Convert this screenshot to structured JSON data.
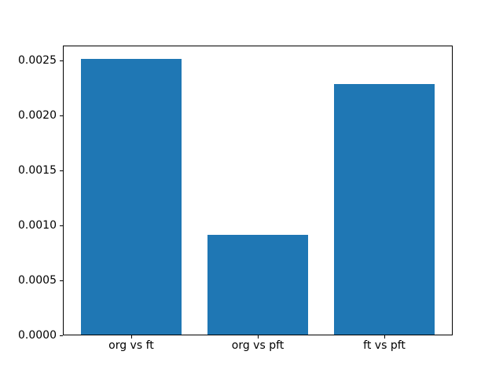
{
  "figure": {
    "background_color": "#ffffff",
    "axes_edge_color": "#000000"
  },
  "chart_data": {
    "type": "bar",
    "title": "",
    "xlabel": "",
    "ylabel": "",
    "categories": [
      "org vs ft",
      "org vs pft",
      "ft vs pft"
    ],
    "values": [
      0.00251,
      0.00091,
      0.00228
    ],
    "bar_color": "#1f77b4",
    "bar_width": 0.8,
    "xlim": [
      -0.54,
      2.54
    ],
    "ylim": [
      0,
      0.0026355
    ],
    "yticks": [
      0.0,
      0.0005,
      0.001,
      0.0015,
      0.002,
      0.0025
    ],
    "ytick_labels": [
      "0.0000",
      "0.0005",
      "0.0010",
      "0.0015",
      "0.0020",
      "0.0025"
    ],
    "grid": false,
    "legend": null
  }
}
